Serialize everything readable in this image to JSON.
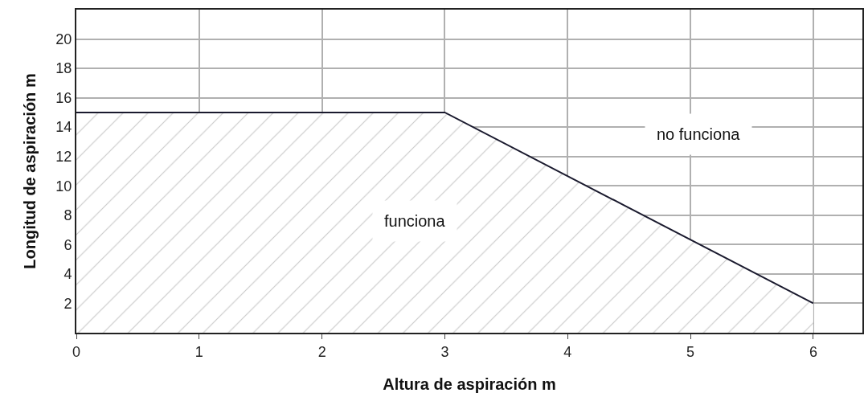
{
  "chart_data": {
    "type": "area",
    "xlabel": "Altura de aspiración m",
    "ylabel": "Longitud de aspiración m",
    "x": [
      0,
      3,
      6
    ],
    "series": [
      {
        "color": "#1a1a2e",
        "values": [
          15,
          15,
          2
        ]
      }
    ],
    "xlim": [
      0,
      6.4
    ],
    "xticks": [
      0,
      1,
      2,
      3,
      4,
      5,
      6
    ],
    "ylim": [
      0,
      22
    ],
    "yticks": [
      2,
      4,
      6,
      8,
      10,
      12,
      14,
      16,
      18,
      20
    ],
    "grid": true,
    "annotations": [
      "funciona",
      "no funciona"
    ]
  }
}
